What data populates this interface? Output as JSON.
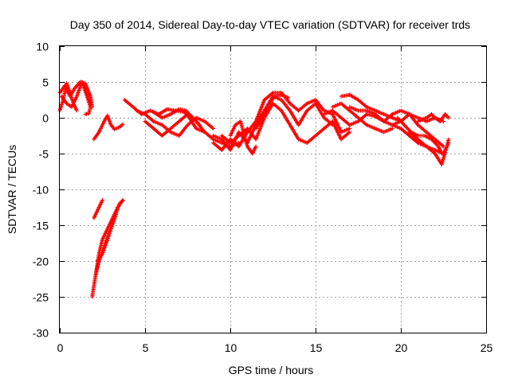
{
  "chart_data": {
    "type": "scatter",
    "title": "Day 350 of 2014, Sidereal Day-to-day VTEC variation (SDTVAR) for receiver trds",
    "xlabel": "GPS time / hours",
    "ylabel": "SDTVAR / TECUs",
    "xlim": [
      0,
      25
    ],
    "ylim": [
      -30,
      10
    ],
    "x_ticks": [
      0,
      5,
      10,
      15,
      20,
      25
    ],
    "y_ticks": [
      -30,
      -25,
      -20,
      -15,
      -10,
      -5,
      0,
      5,
      10
    ],
    "grid": true,
    "marker": "+",
    "series": [
      {
        "name": "trds",
        "color": "#ff0000",
        "tracks": [
          [
            [
              0.0,
              3.5
            ],
            [
              0.3,
              4.5
            ],
            [
              0.6,
              3.0
            ],
            [
              0.9,
              4.2
            ],
            [
              1.2,
              5.0
            ],
            [
              1.5,
              4.8
            ],
            [
              1.8,
              3.0
            ],
            [
              1.9,
              1.5
            ]
          ],
          [
            [
              0.0,
              1.0
            ],
            [
              0.2,
              2.5
            ],
            [
              0.4,
              4.8
            ],
            [
              0.6,
              3.5
            ],
            [
              0.8,
              2.0
            ],
            [
              1.0,
              1.0
            ]
          ],
          [
            [
              0.1,
              3.0
            ],
            [
              0.4,
              2.0
            ],
            [
              0.7,
              1.5
            ],
            [
              1.0,
              3.0
            ],
            [
              1.3,
              5.0
            ],
            [
              1.6,
              3.5
            ],
            [
              1.8,
              2.0
            ]
          ],
          [
            [
              1.3,
              5.0
            ],
            [
              1.6,
              3.0
            ],
            [
              1.8,
              1.5
            ],
            [
              1.7,
              0.6
            ],
            [
              1.5,
              0.5
            ]
          ],
          [
            [
              2.0,
              -3.0
            ],
            [
              2.3,
              -2.0
            ],
            [
              2.6,
              -0.5
            ],
            [
              2.8,
              0.3
            ],
            [
              3.0,
              -1.0
            ],
            [
              3.2,
              -1.6
            ],
            [
              3.5,
              -1.3
            ],
            [
              3.7,
              -0.9
            ]
          ],
          [
            [
              2.0,
              -14.0
            ],
            [
              2.2,
              -13.0
            ],
            [
              2.4,
              -12.0
            ],
            [
              2.5,
              -11.5
            ]
          ],
          [
            [
              1.9,
              -25.0
            ],
            [
              2.1,
              -22.0
            ],
            [
              2.3,
              -19.0
            ],
            [
              2.5,
              -17.0
            ],
            [
              2.8,
              -15.5
            ],
            [
              3.1,
              -14.0
            ],
            [
              3.4,
              -12.5
            ],
            [
              3.7,
              -11.5
            ]
          ],
          [
            [
              2.1,
              -22.0
            ],
            [
              2.3,
              -20.0
            ],
            [
              2.6,
              -18.0
            ],
            [
              2.9,
              -16.0
            ],
            [
              3.2,
              -14.0
            ],
            [
              3.5,
              -12.0
            ],
            [
              3.7,
              -11.5
            ]
          ],
          [
            [
              2.2,
              -20.0
            ],
            [
              2.5,
              -19.0
            ],
            [
              2.8,
              -17.0
            ],
            [
              3.0,
              -15.5
            ],
            [
              3.3,
              -13.5
            ]
          ],
          [
            [
              3.8,
              2.5
            ],
            [
              4.3,
              1.5
            ],
            [
              4.8,
              0.5
            ],
            [
              5.3,
              1.0
            ],
            [
              5.8,
              0.5
            ],
            [
              6.3,
              1.2
            ],
            [
              6.8,
              1.0
            ],
            [
              7.3,
              0.8
            ],
            [
              7.6,
              0.0
            ],
            [
              8.0,
              -1.5
            ],
            [
              8.5,
              -2.0
            ],
            [
              9.0,
              -3.0
            ],
            [
              9.5,
              -3.5
            ],
            [
              10.0,
              -4.0
            ],
            [
              10.5,
              -3.5
            ]
          ],
          [
            [
              5.0,
              -0.5
            ],
            [
              5.5,
              -1.5
            ],
            [
              6.0,
              -2.5
            ],
            [
              6.5,
              -1.5
            ],
            [
              7.0,
              -0.5
            ],
            [
              7.5,
              0.5
            ],
            [
              8.0,
              -0.5
            ],
            [
              8.5,
              -2.0
            ]
          ],
          [
            [
              4.5,
              1.0
            ],
            [
              5.0,
              0.5
            ],
            [
              5.5,
              -0.5
            ],
            [
              6.0,
              -1.0
            ],
            [
              6.5,
              -2.0
            ],
            [
              7.0,
              -2.5
            ],
            [
              7.5,
              -1.0
            ],
            [
              8.0,
              0.0
            ],
            [
              8.5,
              -0.5
            ],
            [
              9.0,
              -1.5
            ]
          ],
          [
            [
              5.5,
              0.8
            ],
            [
              6.0,
              0.0
            ],
            [
              6.5,
              0.5
            ],
            [
              7.0,
              1.2
            ],
            [
              7.4,
              1.0
            ],
            [
              7.8,
              0.0
            ],
            [
              8.2,
              -1.0
            ]
          ],
          [
            [
              9.0,
              -2.5
            ],
            [
              9.5,
              -3.0
            ],
            [
              10.0,
              -4.5
            ],
            [
              10.5,
              -2.0
            ],
            [
              11.0,
              -3.5
            ],
            [
              11.5,
              -1.0
            ],
            [
              12.0,
              1.0
            ],
            [
              12.5,
              3.0
            ],
            [
              13.0,
              2.5
            ],
            [
              13.5,
              1.0
            ],
            [
              14.0,
              -1.0
            ],
            [
              14.5,
              1.0
            ],
            [
              15.0,
              2.0
            ],
            [
              15.5,
              0.0
            ],
            [
              16.0,
              -1.0
            ]
          ],
          [
            [
              9.0,
              -3.5
            ],
            [
              9.5,
              -4.5
            ],
            [
              10.0,
              -3.0
            ],
            [
              10.5,
              -4.0
            ],
            [
              11.0,
              -2.0
            ],
            [
              11.5,
              -0.5
            ],
            [
              12.0,
              2.5
            ],
            [
              12.5,
              3.5
            ],
            [
              13.0,
              3.5
            ],
            [
              13.5,
              2.0
            ],
            [
              14.0,
              1.0
            ],
            [
              14.5,
              2.0
            ],
            [
              15.0,
              2.5
            ],
            [
              15.5,
              1.0
            ],
            [
              16.0,
              0.5
            ],
            [
              16.5,
              -2.0
            ],
            [
              17.0,
              -1.5
            ]
          ],
          [
            [
              9.5,
              -2.5
            ],
            [
              10.0,
              -3.5
            ],
            [
              10.5,
              -2.5
            ],
            [
              11.0,
              -1.5
            ],
            [
              11.5,
              -3.0
            ],
            [
              12.0,
              0.0
            ],
            [
              12.5,
              2.0
            ],
            [
              13.0,
              1.0
            ],
            [
              13.5,
              -1.0
            ],
            [
              14.0,
              -3.0
            ],
            [
              14.5,
              -3.5
            ],
            [
              15.0,
              -2.5
            ],
            [
              15.5,
              -1.5
            ],
            [
              16.0,
              -0.5
            ],
            [
              16.5,
              -3.0
            ],
            [
              17.0,
              -2.0
            ]
          ],
          [
            [
              10.0,
              -2.5
            ],
            [
              10.3,
              -1.0
            ],
            [
              10.6,
              -0.5
            ],
            [
              11.0,
              -4.0
            ],
            [
              11.3,
              -5.0
            ],
            [
              11.5,
              -4.0
            ]
          ],
          [
            [
              11.5,
              -1.5
            ],
            [
              12.0,
              0.5
            ],
            [
              12.3,
              2.0
            ],
            [
              12.6,
              3.0
            ],
            [
              13.0,
              3.2
            ],
            [
              13.4,
              2.8
            ]
          ],
          [
            [
              15.5,
              0.5
            ],
            [
              16.0,
              1.0
            ],
            [
              16.5,
              0.0
            ],
            [
              17.0,
              -1.0
            ],
            [
              17.5,
              -0.5
            ],
            [
              18.0,
              0.5
            ],
            [
              18.5,
              0.2
            ],
            [
              19.0,
              -0.5
            ],
            [
              19.5,
              -1.0
            ],
            [
              20.0,
              -0.5
            ]
          ],
          [
            [
              16.0,
              1.5
            ],
            [
              16.5,
              2.0
            ],
            [
              17.0,
              1.0
            ],
            [
              17.5,
              0.0
            ],
            [
              18.0,
              -1.0
            ],
            [
              18.5,
              -1.5
            ],
            [
              19.0,
              -2.0
            ],
            [
              19.5,
              -1.5
            ]
          ],
          [
            [
              16.5,
              3.0
            ],
            [
              17.0,
              3.2
            ],
            [
              17.5,
              2.5
            ],
            [
              18.0,
              1.5
            ],
            [
              18.5,
              1.0
            ],
            [
              19.0,
              0.5
            ],
            [
              19.5,
              0.0
            ],
            [
              20.0,
              -0.5
            ],
            [
              20.5,
              0.5
            ],
            [
              21.0,
              0.0
            ],
            [
              21.5,
              -0.5
            ],
            [
              22.0,
              0.0
            ],
            [
              22.5,
              -0.5
            ]
          ],
          [
            [
              17.0,
              1.5
            ],
            [
              17.5,
              1.0
            ],
            [
              18.0,
              1.0
            ],
            [
              18.5,
              0.5
            ],
            [
              19.0,
              -0.5
            ],
            [
              19.5,
              0.5
            ],
            [
              20.0,
              1.0
            ],
            [
              20.5,
              0.5
            ],
            [
              21.0,
              -1.0
            ],
            [
              21.5,
              -2.0
            ],
            [
              22.0,
              -3.0
            ],
            [
              22.5,
              -4.0
            ]
          ],
          [
            [
              19.5,
              -1.0
            ],
            [
              20.0,
              -1.5
            ],
            [
              20.5,
              -2.5
            ],
            [
              21.0,
              -3.5
            ],
            [
              21.5,
              -4.0
            ],
            [
              22.0,
              -4.5
            ],
            [
              22.5,
              -5.0
            ],
            [
              22.8,
              -3.5
            ]
          ],
          [
            [
              20.5,
              -2.0
            ],
            [
              21.0,
              -3.0
            ],
            [
              21.5,
              -4.0
            ],
            [
              22.0,
              -5.0
            ],
            [
              22.4,
              -6.5
            ],
            [
              22.7,
              -4.0
            ],
            [
              22.8,
              -3.0
            ]
          ],
          [
            [
              21.0,
              -0.5
            ],
            [
              21.5,
              0.0
            ],
            [
              21.8,
              0.5
            ],
            [
              22.0,
              0.0
            ],
            [
              22.3,
              -0.5
            ],
            [
              22.6,
              0.5
            ],
            [
              22.8,
              0.0
            ]
          ],
          [
            [
              19.8,
              0.0
            ],
            [
              20.2,
              -1.0
            ],
            [
              20.6,
              -2.0
            ],
            [
              21.0,
              -2.5
            ],
            [
              21.4,
              -2.5
            ],
            [
              21.8,
              -3.0
            ],
            [
              22.2,
              -4.0
            ],
            [
              22.4,
              -5.0
            ]
          ]
        ]
      }
    ]
  }
}
